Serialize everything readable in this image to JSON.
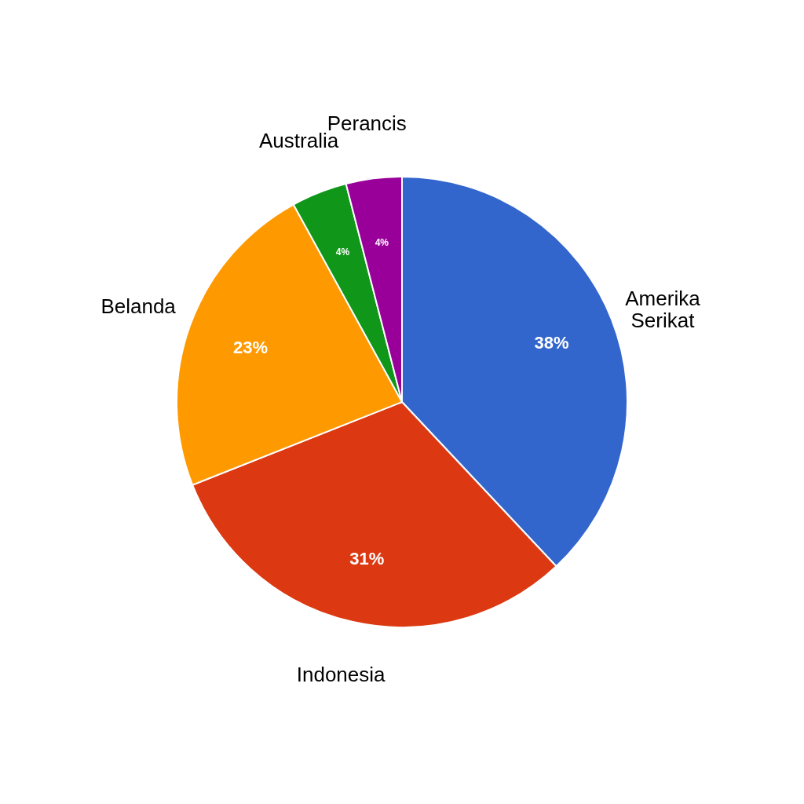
{
  "chart_data": {
    "type": "pie",
    "categories": [
      "Amerika Serikat",
      "Indonesia",
      "Belanda",
      "Australia",
      "Perancis"
    ],
    "values": [
      38,
      31,
      23,
      4,
      4
    ],
    "colors": [
      "#3366cc",
      "#dc3912",
      "#ff9900",
      "#109618",
      "#990099"
    ],
    "value_labels": [
      "38%",
      "31%",
      "23%",
      "4%",
      "4%"
    ]
  }
}
